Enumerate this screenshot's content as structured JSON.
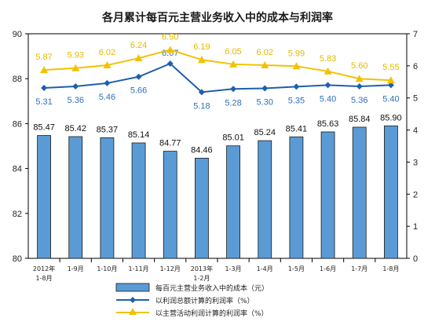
{
  "chart_data": {
    "type": "bar",
    "title": "各月累计每百元主营业务收入中的成本与利润率",
    "categories": [
      [
        "2012年",
        "1-8月"
      ],
      [
        "1-9月"
      ],
      [
        "1-10月"
      ],
      [
        "1-11月"
      ],
      [
        "1-12月"
      ],
      [
        "2013年",
        "1-2月"
      ],
      [
        "1-3月"
      ],
      [
        "1-4月"
      ],
      [
        "1-5月"
      ],
      [
        "1-6月"
      ],
      [
        "1-7月"
      ],
      [
        "1-8月"
      ]
    ],
    "y_left": {
      "min": 80,
      "max": 90,
      "ticks": [
        80,
        82,
        84,
        86,
        88,
        90
      ]
    },
    "y_right": {
      "min": 0,
      "max": 7,
      "ticks": [
        0,
        1,
        2,
        3,
        4,
        5,
        6,
        7
      ]
    },
    "series": [
      {
        "name": "每百元主营业务收入中的成本（元）",
        "kind": "bar",
        "axis": "left",
        "color": "#5b9bd5",
        "values": [
          85.47,
          85.42,
          85.37,
          85.14,
          84.77,
          84.46,
          85.01,
          85.24,
          85.41,
          85.63,
          85.84,
          85.9
        ],
        "labels": [
          "85.47",
          "85.42",
          "85.37",
          "85.14",
          "84.77",
          "84.46",
          "85.01",
          "85.24",
          "85.41",
          "85.63",
          "85.84",
          "85.90"
        ]
      },
      {
        "name": "以利润总额计算的利润率（%）",
        "kind": "line",
        "axis": "right",
        "color": "#1f5fad",
        "marker": "diamond",
        "values": [
          5.31,
          5.36,
          5.46,
          5.66,
          6.07,
          5.18,
          5.28,
          5.3,
          5.35,
          5.4,
          5.36,
          5.4
        ],
        "labels": [
          "5.31",
          "5.36",
          "5.46",
          "5.66",
          "6.07",
          "5.18",
          "5.28",
          "5.30",
          "5.35",
          "5.40",
          "5.36",
          "5.40"
        ]
      },
      {
        "name": "以主营活动利润计算的利润率（%）",
        "kind": "line",
        "axis": "right",
        "color": "#f2c200",
        "marker": "triangle",
        "values": [
          5.87,
          5.93,
          6.02,
          6.24,
          6.5,
          6.19,
          6.05,
          6.02,
          5.99,
          5.83,
          5.6,
          5.55
        ],
        "labels": [
          "5.87",
          "5.93",
          "6.02",
          "6.24",
          "6.50",
          "6.19",
          "6.05",
          "6.02",
          "5.99",
          "5.83",
          "5.60",
          "5.55"
        ]
      }
    ],
    "grid": false,
    "legend_position": "bottom"
  }
}
